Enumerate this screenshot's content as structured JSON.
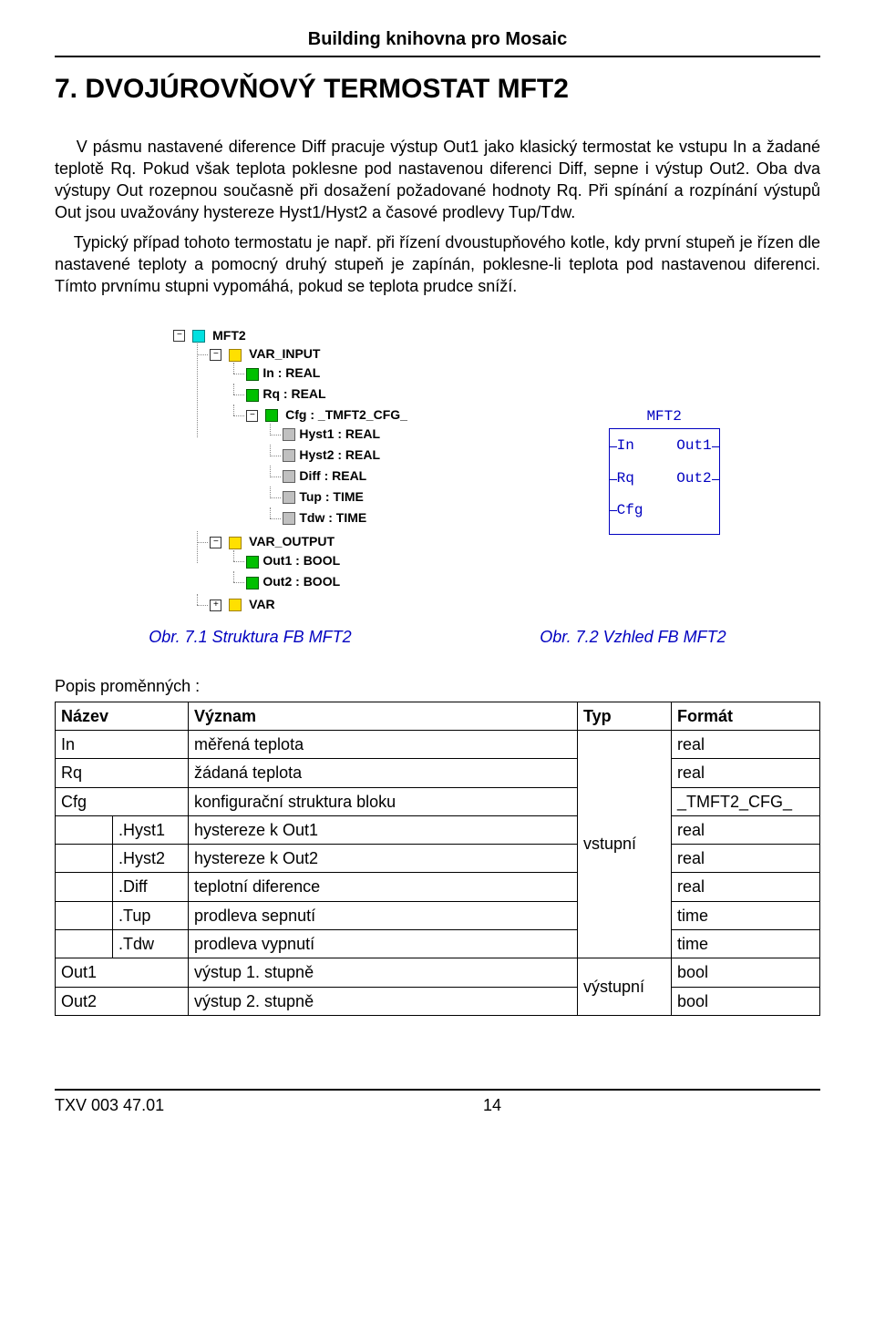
{
  "header": "Building knihovna pro Mosaic",
  "title": "7. DVOJÚROVŇOVÝ TERMOSTAT MFT2",
  "para1": "V pásmu nastavené diference Diff pracuje výstup Out1 jako klasický termostat ke vstupu In a žadané teplotě Rq. Pokud však teplota poklesne pod nastavenou diferenci Diff, sepne i výstup Out2. Oba dva výstupy Out rozepnou současně při dosažení požadované hodnoty Rq. Při spínání a rozpínání výstupů Out jsou uvažovány hystereze Hyst1/Hyst2 a časové prodlevy Tup/Tdw.",
  "para2": "Typický případ tohoto termostatu je např. při řízení dvoustupňového kotle, kdy první stupeň je řízen dle nastavené teploty a pomocný druhý stupeň je zapínán, poklesne-li teplota pod nastavenou diferenci. Tímto prvnímu stupni vypomáhá, pokud se teplota prudce sníží.",
  "tree": {
    "root": "MFT2",
    "var_input": "VAR_INPUT",
    "in": "In : REAL",
    "rq": "Rq : REAL",
    "cfg": "Cfg : _TMFT2_CFG_",
    "hyst1": "Hyst1 : REAL",
    "hyst2": "Hyst2 : REAL",
    "diff": "Diff : REAL",
    "tup": "Tup : TIME",
    "tdw": "Tdw : TIME",
    "var_output": "VAR_OUTPUT",
    "out1": "Out1 : BOOL",
    "out2": "Out2 : BOOL",
    "var": "VAR"
  },
  "fb": {
    "name": "MFT2",
    "in": "In",
    "out1": "Out1",
    "rq": "Rq",
    "out2": "Out2",
    "cfg": "Cfg"
  },
  "captions": {
    "left": "Obr. 7.1    Struktura FB MFT2",
    "right": "Obr. 7.2  Vzhled  FB MFT2"
  },
  "table": {
    "intro": "Popis proměnných :",
    "head": {
      "c1": "Název",
      "c3": "Význam",
      "c4": "Typ",
      "c5": "Formát"
    },
    "rows": [
      {
        "c1": "In",
        "c2": "",
        "c3": "měřená teplota",
        "c4": "",
        "c5": "real"
      },
      {
        "c1": "Rq",
        "c2": "",
        "c3": "žádaná teplota",
        "c4": "",
        "c5": "real"
      },
      {
        "c1": "Cfg",
        "c2": "",
        "c3": "konfigurační struktura bloku",
        "c4": "",
        "c5": "_TMFT2_CFG_"
      },
      {
        "c1": "",
        "c2": ".Hyst1",
        "c3": "hystereze k Out1",
        "c4": "vstupní",
        "c5": "real"
      },
      {
        "c1": "",
        "c2": ".Hyst2",
        "c3": "hystereze k Out2",
        "c4": "",
        "c5": "real"
      },
      {
        "c1": "",
        "c2": ".Diff",
        "c3": "teplotní diference",
        "c4": "",
        "c5": "real"
      },
      {
        "c1": "",
        "c2": ".Tup",
        "c3": "prodleva  sepnutí",
        "c4": "",
        "c5": "time"
      },
      {
        "c1": "",
        "c2": ".Tdw",
        "c3": "prodleva vypnutí",
        "c4": "",
        "c5": "time"
      },
      {
        "c1": "Out1",
        "c2": "",
        "c3": "výstup 1. stupně",
        "c4": "výstupní",
        "c5": "bool"
      },
      {
        "c1": "Out2",
        "c2": "",
        "c3": "výstup 2. stupně",
        "c4": "",
        "c5": "bool"
      }
    ]
  },
  "footer": {
    "left": "TXV 003 47.01",
    "page": "14"
  },
  "colors": {
    "fb_line": "#0000c0",
    "caption": "#0000c0"
  }
}
